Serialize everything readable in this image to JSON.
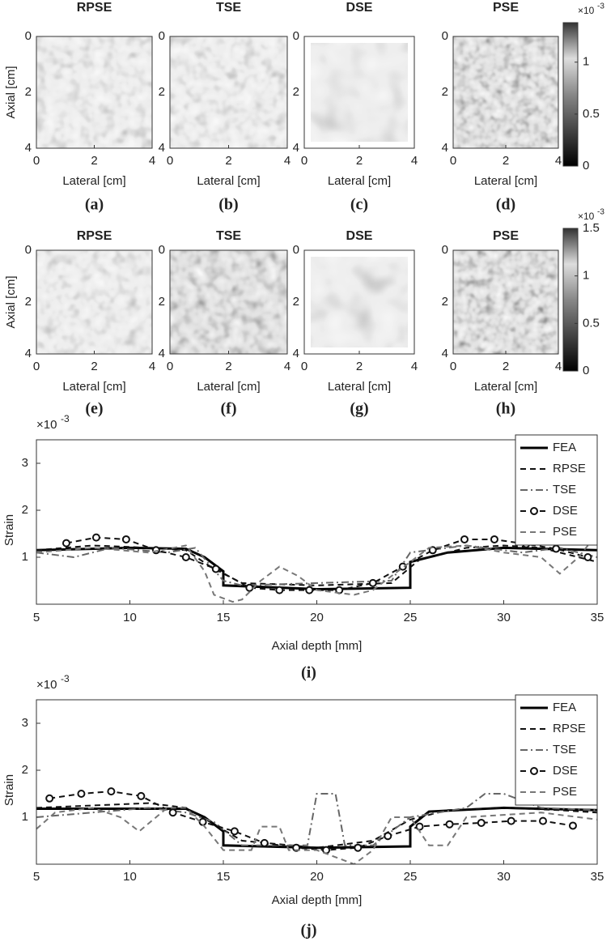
{
  "image_panels": [
    {
      "title": "RPSE",
      "caption": "(a)"
    },
    {
      "title": "TSE",
      "caption": "(b)"
    },
    {
      "title": "DSE",
      "caption": "(c)"
    },
    {
      "title": "PSE",
      "caption": "(d)"
    },
    {
      "title": "RPSE",
      "caption": "(e)"
    },
    {
      "title": "TSE",
      "caption": "(f)"
    },
    {
      "title": "DSE",
      "caption": "(g)"
    },
    {
      "title": "PSE",
      "caption": "(h)"
    }
  ],
  "image_axes": {
    "xlabel": "Lateral [cm]",
    "ylabel": "Axial [cm]",
    "ticks": [
      0,
      2,
      4
    ],
    "lim": [
      0,
      4
    ]
  },
  "colorbars": [
    {
      "lim": [
        0,
        1.38
      ],
      "ticks": [
        0,
        0.5,
        1
      ],
      "exponent": "×10",
      "power": "-3"
    },
    {
      "lim": [
        0,
        1.5
      ],
      "ticks": [
        0,
        0.5,
        1,
        1.5
      ],
      "exponent": "×10",
      "power": "-3"
    }
  ],
  "chart_data": [
    {
      "type": "line",
      "caption": "(i)",
      "xlabel": "Axial depth [mm]",
      "ylabel": "Strain",
      "exponent": "×10",
      "power": "-3",
      "xlim": [
        5,
        35
      ],
      "ylim": [
        0,
        3.5
      ],
      "xticks": [
        5,
        10,
        15,
        20,
        25,
        30,
        35
      ],
      "yticks": [
        1,
        2,
        3
      ],
      "legend": "top-right",
      "series": [
        {
          "name": "FEA",
          "color": "#000000",
          "style": "solid",
          "x": [
            5,
            10,
            13,
            14,
            15,
            15,
            20,
            25,
            25,
            27,
            30,
            35
          ],
          "values": [
            1.15,
            1.2,
            1.18,
            1.0,
            0.7,
            0.4,
            0.32,
            0.35,
            0.9,
            1.1,
            1.2,
            1.15
          ]
        },
        {
          "name": "RPSE",
          "color": "#111111",
          "style": "dashed",
          "x": [
            5,
            8,
            10,
            13,
            14.5,
            16,
            20,
            24,
            25.5,
            28,
            30,
            32,
            35
          ],
          "values": [
            1.15,
            1.25,
            1.22,
            1.15,
            0.75,
            0.45,
            0.4,
            0.45,
            0.95,
            1.2,
            1.25,
            1.2,
            0.9
          ]
        },
        {
          "name": "TSE",
          "color": "#666666",
          "style": "dashdot",
          "x": [
            5,
            7,
            9,
            12,
            13.5,
            15,
            16,
            20,
            24,
            25,
            28,
            31,
            33,
            35
          ],
          "values": [
            1.1,
            1.0,
            1.2,
            1.1,
            1.2,
            0.5,
            0.4,
            0.45,
            0.5,
            1.1,
            1.25,
            1.1,
            1.2,
            1.0
          ]
        },
        {
          "name": "DSE",
          "color": "#111111",
          "style": "dashed",
          "marker": "o",
          "x": [
            6.6,
            8.2,
            9.8,
            11.4,
            13,
            14.6,
            16.4,
            18,
            19.6,
            21.2,
            23,
            24.6,
            26.2,
            27.9,
            29.5,
            31.2,
            32.8,
            34.5
          ],
          "values": [
            1.3,
            1.42,
            1.38,
            1.15,
            1.0,
            0.75,
            0.35,
            0.3,
            0.3,
            0.3,
            0.45,
            0.8,
            1.15,
            1.38,
            1.38,
            1.28,
            1.18,
            1.0
          ]
        },
        {
          "name": "PSE",
          "color": "#777777",
          "style": "dashed",
          "x": [
            5,
            8,
            11,
            13,
            14,
            14.5,
            15.5,
            16,
            17,
            18,
            19,
            20,
            21,
            22,
            23,
            24,
            26,
            28,
            30,
            32,
            33,
            34,
            35
          ],
          "values": [
            1.1,
            1.2,
            1.1,
            1.25,
            0.7,
            0.2,
            0.05,
            0.1,
            0.5,
            0.8,
            0.6,
            0.3,
            0.25,
            0.2,
            0.3,
            0.6,
            1.2,
            1.25,
            1.1,
            1.0,
            0.65,
            1.0,
            1.5
          ]
        }
      ]
    },
    {
      "type": "line",
      "caption": "(j)",
      "xlabel": "Axial depth [mm]",
      "ylabel": "Strain",
      "exponent": "×10",
      "power": "-3",
      "xlim": [
        5,
        35
      ],
      "ylim": [
        0,
        3.5
      ],
      "xticks": [
        5,
        10,
        15,
        20,
        25,
        30,
        35
      ],
      "yticks": [
        1,
        2,
        3
      ],
      "legend": "top-right",
      "series": [
        {
          "name": "FEA",
          "color": "#000000",
          "style": "solid",
          "x": [
            5,
            10,
            13,
            14,
            15,
            15,
            20,
            25,
            25,
            26,
            30,
            35
          ],
          "values": [
            1.18,
            1.18,
            1.18,
            1.0,
            0.7,
            0.4,
            0.35,
            0.38,
            0.8,
            1.12,
            1.2,
            1.15
          ]
        },
        {
          "name": "RPSE",
          "color": "#111111",
          "style": "dashed",
          "x": [
            5,
            8,
            11,
            13,
            14.5,
            16,
            20,
            23,
            25,
            27,
            30,
            33,
            35
          ],
          "values": [
            1.2,
            1.25,
            1.3,
            1.2,
            0.85,
            0.5,
            0.35,
            0.5,
            0.95,
            1.15,
            1.2,
            1.15,
            1.1
          ]
        },
        {
          "name": "TSE",
          "color": "#666666",
          "style": "dashdot",
          "x": [
            5,
            8,
            11,
            13,
            14.5,
            16,
            18,
            19.5,
            20,
            21,
            21.5,
            23,
            25,
            28,
            29,
            30,
            32,
            35
          ],
          "values": [
            1.0,
            1.1,
            1.2,
            1.1,
            0.9,
            0.4,
            0.4,
            0.4,
            1.5,
            1.5,
            0.4,
            0.4,
            1.0,
            1.2,
            1.5,
            1.5,
            1.2,
            1.15
          ]
        },
        {
          "name": "DSE",
          "color": "#111111",
          "style": "dashed",
          "marker": "o",
          "x": [
            5.7,
            7.4,
            9,
            10.6,
            12.3,
            13.9,
            15.6,
            17.2,
            18.9,
            20.5,
            22.2,
            23.8,
            25.5,
            27.1,
            28.8,
            30.4,
            32.1,
            33.7
          ],
          "values": [
            1.4,
            1.5,
            1.55,
            1.45,
            1.1,
            0.9,
            0.7,
            0.45,
            0.35,
            0.3,
            0.35,
            0.6,
            0.8,
            0.85,
            0.88,
            0.92,
            0.92,
            0.82
          ]
        },
        {
          "name": "PSE",
          "color": "#777777",
          "style": "dashed",
          "x": [
            5,
            6,
            8,
            9.5,
            10.5,
            12,
            13,
            14,
            15,
            16.5,
            17,
            18,
            18.5,
            20,
            22,
            23,
            24,
            25,
            26,
            27,
            28,
            30,
            32,
            35
          ],
          "values": [
            0.75,
            1.1,
            1.2,
            1.0,
            0.7,
            1.2,
            1.2,
            0.8,
            0.3,
            0.3,
            0.8,
            0.8,
            0.3,
            0.3,
            0.0,
            0.3,
            1.0,
            1.0,
            0.4,
            0.4,
            1.0,
            1.05,
            1.1,
            0.95
          ]
        }
      ]
    }
  ]
}
